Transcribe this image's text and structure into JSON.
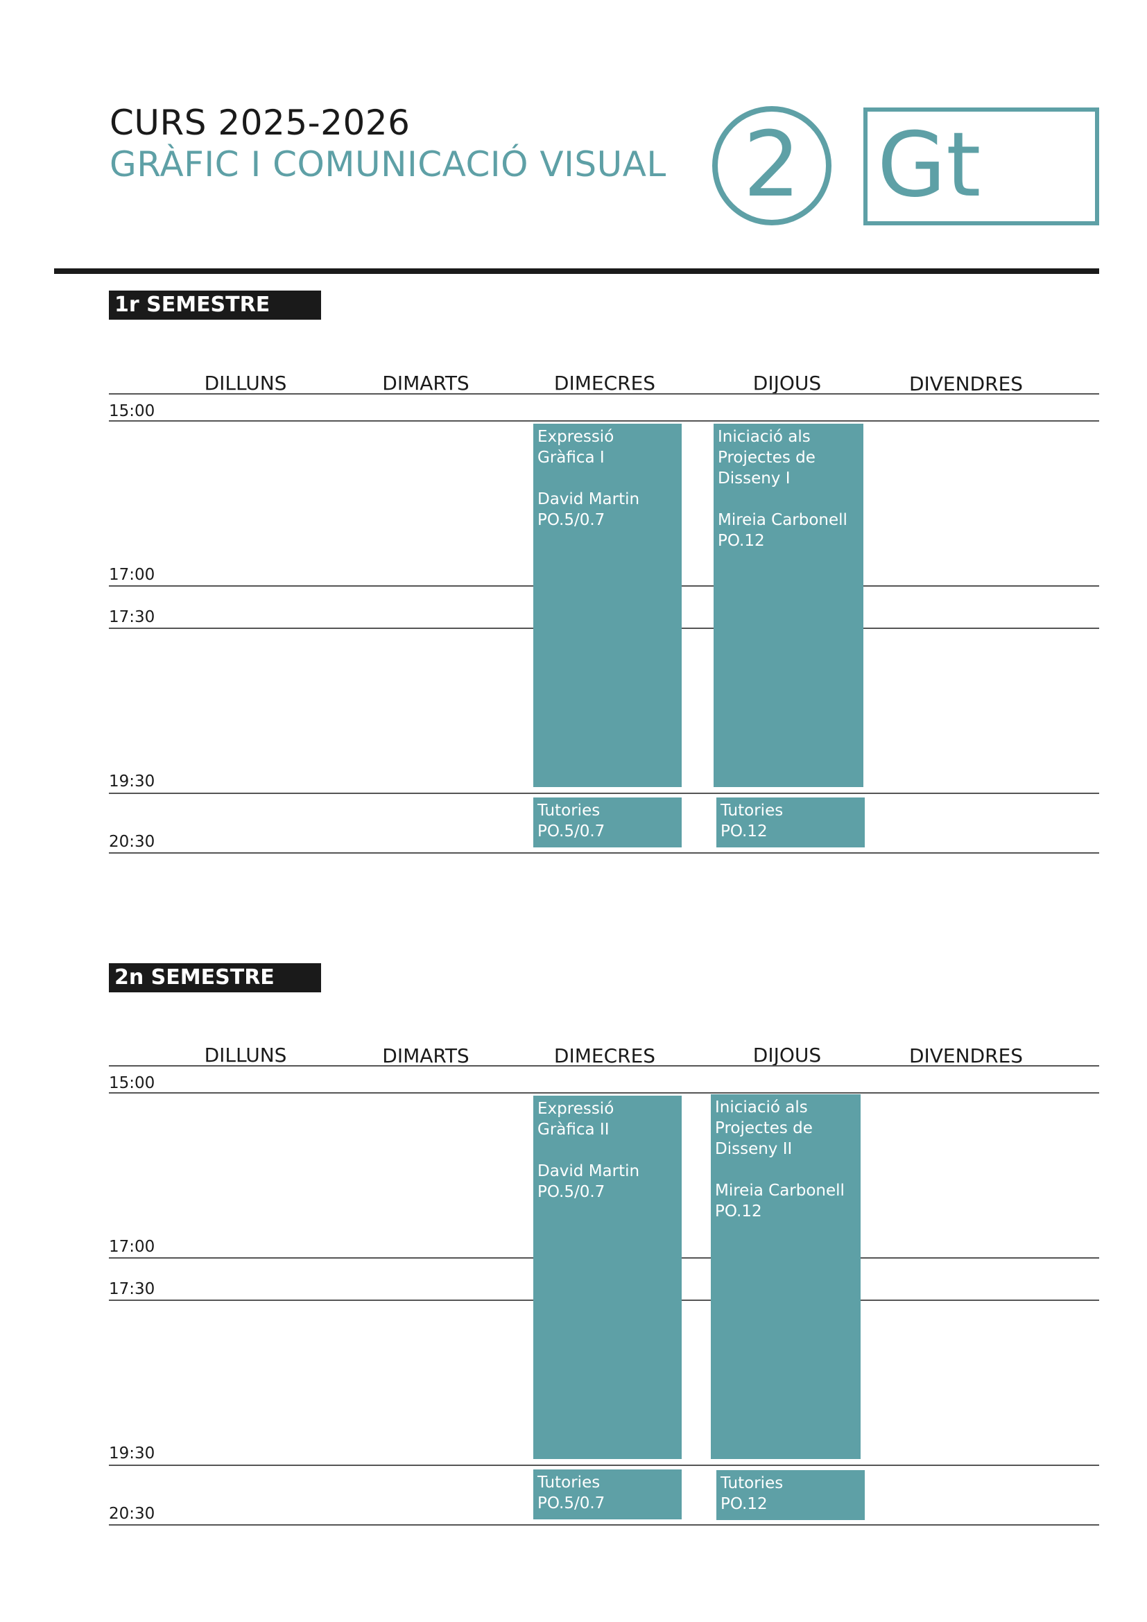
{
  "header": {
    "course": "CURS 2025-2026",
    "program": "GRÀFIC I COMUNICACIÓ VISUAL",
    "year_number": "2",
    "group_code": "Gt"
  },
  "days": [
    "DILLUNS",
    "DIMARTS",
    "DIMECRES",
    "DIJOUS",
    "DIVENDRES"
  ],
  "times": [
    "15:00",
    "17:00",
    "17:30",
    "19:30",
    "20:30"
  ],
  "semesters": [
    {
      "label": "1r SEMESTRE",
      "classes": [
        {
          "day": "DIMECRES",
          "text": "Expressió\nGràfica I\n\nDavid Martin\nPO.5/0.7"
        },
        {
          "day": "DIJOUS",
          "text": "Iniciació als\nProjectes de\nDisseny I\n\nMireia Carbonell\nPO.12"
        }
      ],
      "tutorials": [
        {
          "day": "DIMECRES",
          "text": "Tutories\nPO.5/0.7"
        },
        {
          "day": "DIJOUS",
          "text": "Tutories\nPO.12"
        }
      ]
    },
    {
      "label": "2n SEMESTRE",
      "classes": [
        {
          "day": "DIMECRES",
          "text": "Expressió\nGràfica II\n\nDavid Martin\nPO.5/0.7"
        },
        {
          "day": "DIJOUS",
          "text": "Iniciació als\nProjectes de\nDisseny II\n\nMireia Carbonell\nPO.12"
        }
      ],
      "tutorials": [
        {
          "day": "DIMECRES",
          "text": "Tutories\nPO.5/0.7"
        },
        {
          "day": "DIJOUS",
          "text": "Tutories\nPO.12"
        }
      ]
    }
  ]
}
